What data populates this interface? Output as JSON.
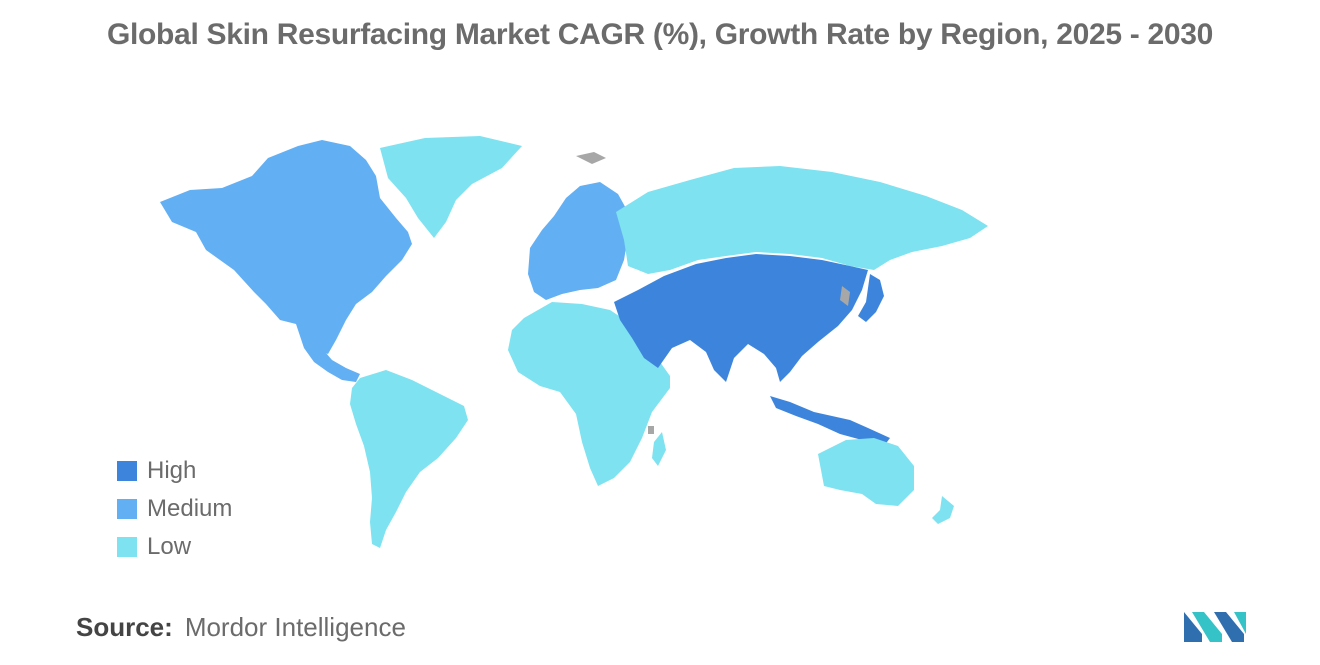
{
  "title": "Global Skin Resurfacing Market CAGR (%), Growth Rate by Region, 2025 - 2030",
  "colors": {
    "high": "#3d85dc",
    "medium": "#62aff4",
    "low": "#7ee2f0",
    "no_data": "#a7a7a7",
    "text": "#6b6b6b"
  },
  "legend": [
    {
      "label": "High",
      "color": "#3d85dc"
    },
    {
      "label": "Medium",
      "color": "#62aff4"
    },
    {
      "label": "Low",
      "color": "#7ee2f0"
    }
  ],
  "regions": {
    "high": [
      "Middle East",
      "South Asia",
      "Central Asia",
      "China",
      "Southeast Asia",
      "Japan"
    ],
    "medium": [
      "North America",
      "Europe"
    ],
    "low": [
      "Greenland",
      "Russia",
      "Africa",
      "South America",
      "Australia",
      "New Zealand"
    ]
  },
  "source": {
    "label": "Source:",
    "value": "Mordor Intelligence"
  },
  "logo": "mordor-intelligence-logo"
}
